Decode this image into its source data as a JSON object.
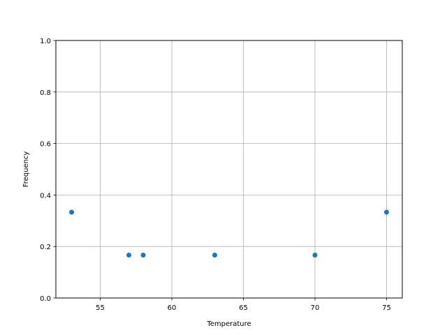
{
  "chart_data": {
    "type": "scatter",
    "title": "",
    "xlabel": "Temperature",
    "ylabel": "Frequency",
    "xlim": [
      51.9,
      76.1
    ],
    "ylim": [
      0,
      1
    ],
    "xticks": [
      55,
      60,
      65,
      70,
      75
    ],
    "xtick_labels": [
      "55",
      "60",
      "65",
      "70",
      "75"
    ],
    "yticks": [
      0,
      0.2,
      0.4,
      0.6,
      0.8,
      1.0
    ],
    "ytick_labels": [
      "0.0",
      "0.2",
      "0.4",
      "0.6",
      "0.8",
      "1.0"
    ],
    "grid": true,
    "color": "#1f77b4",
    "points": [
      {
        "x": 53,
        "y": 0.3333
      },
      {
        "x": 57,
        "y": 0.1667
      },
      {
        "x": 58,
        "y": 0.1667
      },
      {
        "x": 63,
        "y": 0.1667
      },
      {
        "x": 70,
        "y": 0.1667
      },
      {
        "x": 75,
        "y": 0.3333
      }
    ]
  }
}
